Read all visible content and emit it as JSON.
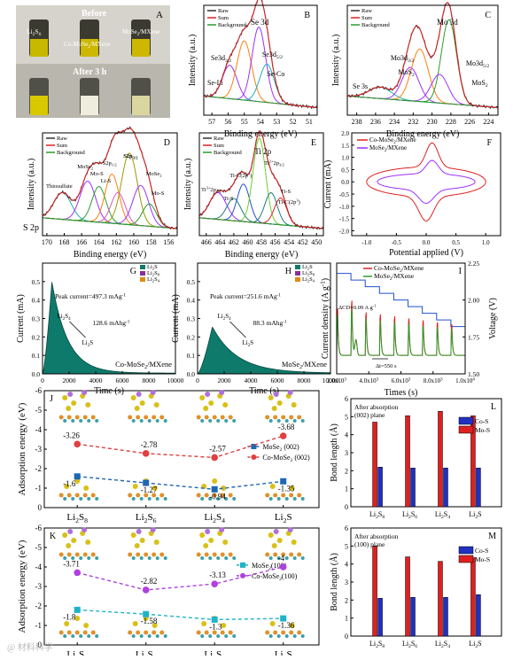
{
  "panel_letters": [
    "A",
    "B",
    "C",
    "D",
    "E",
    "F",
    "G",
    "H",
    "I",
    "J",
    "K",
    "L",
    "M"
  ],
  "photo": {
    "before": "Before",
    "after": "After 3 h",
    "vial_labels": [
      "Li2S6",
      "Co-MoSe2/MXene",
      "MoSe2/MXene"
    ]
  },
  "colors": {
    "raw": "#333333",
    "sum": "#e02020",
    "background": "#2a9d2a",
    "violet": "#9b30ff",
    "orange": "#ff7f0e",
    "cyan": "#1fb3b3",
    "teal": "#1f7a7a",
    "navy": "#1f3f9e",
    "olive": "#9a9a00",
    "pink": "#e055c0",
    "lime": "#6ccf2f",
    "blue": "#2050d0"
  },
  "chart_data": [
    {
      "panel": "B",
      "type": "line",
      "title": "Se 3d",
      "xlabel": "Binding energy (eV)",
      "ylabel": "Intensity (a.u.)",
      "xlim": [
        57.5,
        50.5
      ],
      "xticks": [
        57,
        56,
        55,
        54,
        53,
        52,
        51
      ],
      "legend": [
        "Raw",
        "Sum",
        "Background"
      ],
      "peaks": [
        {
          "label": "Se-Li",
          "center": 55.9,
          "height": 0.35,
          "width": 0.45,
          "color": "#9b30ff"
        },
        {
          "label": "Se3d3/2",
          "center": 55.0,
          "height": 0.62,
          "width": 0.45,
          "color": "#ff7f0e"
        },
        {
          "label": "Se3d5/2",
          "center": 54.1,
          "height": 0.78,
          "width": 0.42,
          "color": "#9b30ff"
        },
        {
          "label": "Se-Co",
          "center": 53.6,
          "height": 0.4,
          "width": 0.45,
          "color": "#1fb3b3"
        }
      ]
    },
    {
      "panel": "C",
      "type": "line",
      "title": "Mo 3d",
      "xlabel": "Binding energy (eV)",
      "ylabel": "Intensity (a.u.)",
      "xlim": [
        239,
        223
      ],
      "xticks": [
        238,
        236,
        234,
        232,
        230,
        228,
        226,
        224
      ],
      "legend": [
        "Raw",
        "Sum",
        "Background"
      ],
      "peaks": [
        {
          "label": "Se 3s",
          "center": 235.5,
          "height": 0.12,
          "width": 1.2,
          "color": "#1fb3b3"
        },
        {
          "label": "MoS2",
          "center": 232.3,
          "height": 0.35,
          "width": 0.9,
          "color": "#9b30ff"
        },
        {
          "label": "Mo3d3/2",
          "center": 231.3,
          "height": 0.55,
          "width": 0.9,
          "color": "#ff7f0e"
        },
        {
          "label": "Mo3d5/2",
          "center": 228.2,
          "height": 0.88,
          "width": 0.8,
          "color": "#2a9d2a"
        },
        {
          "label": "MoS2",
          "center": 229.2,
          "height": 0.3,
          "width": 0.9,
          "color": "#9b30ff"
        }
      ]
    },
    {
      "panel": "D",
      "type": "line",
      "title": "S 2p",
      "xlabel": "Binding energy (eV)",
      "ylabel": "Intensity (a.u.)",
      "xlim": [
        170.5,
        155
      ],
      "xticks": [
        170,
        168,
        166,
        164,
        162,
        160,
        158,
        156
      ],
      "legend": [
        "Raw",
        "Sum",
        "Background"
      ],
      "peaks": [
        {
          "label": "Thiosulfate",
          "center": 168.2,
          "height": 0.3,
          "width": 1.0,
          "color": "#1fb3b3"
        },
        {
          "label": "MoSe2",
          "center": 165.3,
          "height": 0.45,
          "width": 0.9,
          "color": "#9b30ff"
        },
        {
          "label": "Mo-S",
          "center": 164.0,
          "height": 0.4,
          "width": 0.8,
          "color": "#2a9d2a"
        },
        {
          "label": "S2p3/2",
          "center": 162.5,
          "height": 0.55,
          "width": 0.8,
          "color": "#ff7f0e"
        },
        {
          "label": "Li-S",
          "center": 161.8,
          "height": 0.35,
          "width": 0.8,
          "color": "#e055c0"
        },
        {
          "label": "S2p1/2",
          "center": 160.5,
          "height": 0.8,
          "width": 0.9,
          "color": "#9a9a00"
        },
        {
          "label": "MoSe2",
          "center": 159.2,
          "height": 0.45,
          "width": 0.9,
          "color": "#9b30ff"
        },
        {
          "label": "Mo-S",
          "center": 158.2,
          "height": 0.25,
          "width": 0.8,
          "color": "#2a9d2a"
        }
      ]
    },
    {
      "panel": "E",
      "type": "line",
      "title": "Ti 2p",
      "xlabel": "Binding energy (eV)",
      "ylabel": "Intensity (a.u.)",
      "xlim": [
        467,
        449
      ],
      "xticks": [
        466,
        464,
        462,
        460,
        458,
        456,
        454,
        452,
        450
      ],
      "legend": [
        "Raw",
        "Sum",
        "Background"
      ],
      "peaks": [
        {
          "label": "Ti3+2p1/2",
          "center": 464.3,
          "height": 0.3,
          "width": 1.2,
          "color": "#9b30ff"
        },
        {
          "label": "Ti-S",
          "center": 462.0,
          "height": 0.25,
          "width": 1.0,
          "color": "#1f7a7a"
        },
        {
          "label": "Ti-C(2p1)",
          "center": 460.6,
          "height": 0.42,
          "width": 0.9,
          "color": "#2050d0"
        },
        {
          "label": "Ti2+2p3/2",
          "center": 458.3,
          "height": 0.95,
          "width": 0.9,
          "color": "#6ccf2f"
        },
        {
          "label": "Ti-S",
          "center": 456.6,
          "height": 0.35,
          "width": 0.9,
          "color": "#1f7a7a"
        },
        {
          "label": "Ti-C(2p3)",
          "center": 455.2,
          "height": 0.3,
          "width": 0.9,
          "color": "#e02020"
        }
      ]
    },
    {
      "panel": "F",
      "type": "line",
      "xlabel": "Potential applied (V)",
      "ylabel": "Current (mA)",
      "xlim": [
        -1.25,
        1.25
      ],
      "ylim": [
        -2.2,
        2.0
      ],
      "xticks": [
        -1.0,
        -0.5,
        0.0,
        0.5,
        1.0
      ],
      "yticks": [
        -2.0,
        -1.5,
        -1.0,
        -0.5,
        0.0,
        0.5,
        1.0,
        1.5,
        2.0
      ],
      "series": [
        {
          "name": "Co-MoSe2/MXene",
          "color": "#e02020",
          "scale": 1.0
        },
        {
          "name": "MoSe2/MXene",
          "color": "#9b30ff",
          "scale": 0.55
        }
      ]
    },
    {
      "panel": "G",
      "type": "area",
      "xlabel": "Time (s)",
      "ylabel": "Current (mA)",
      "xlim": [
        0,
        10000
      ],
      "ylim": [
        0,
        0.6
      ],
      "xticks": [
        0,
        2000,
        4000,
        6000,
        8000,
        10000
      ],
      "legend": [
        "Li2S",
        "Li2S8",
        "Li2S4"
      ],
      "peak_time": 700,
      "peak_current": 0.497,
      "annotations": [
        "Peak current=497.3 mAg-1",
        "Li2S4",
        "128.6 mAhg-1",
        "Li2S"
      ],
      "sample": "Co-MoSe2/MXene"
    },
    {
      "panel": "H",
      "type": "area",
      "xlabel": "Time (s)",
      "ylabel": "Current (mA)",
      "xlim": [
        0,
        10000
      ],
      "ylim": [
        0,
        0.6
      ],
      "xticks": [
        0,
        2000,
        4000,
        6000,
        8000,
        10000
      ],
      "legend": [
        "Li2S",
        "Li2S8",
        "Li2S4"
      ],
      "peak_time": 1100,
      "peak_current": 0.252,
      "annotations": [
        "Peak current=251.6 mAg-1",
        "Li2S4",
        "88.3 mAhg-1",
        "Li2S"
      ],
      "sample": "MoSe2/MXene"
    },
    {
      "panel": "I",
      "type": "line",
      "xlabel": "Times (s)",
      "ylabel": "Current density (A g-1)",
      "y2label": "Voltage (V)",
      "xlim": [
        18000,
        100000
      ],
      "ylim": [
        -0.1,
        2.0
      ],
      "y2lim": [
        1.5,
        2.25
      ],
      "xticks": [
        "2.0x10^3",
        "4.0x10^3",
        "6.0x10^3",
        "8.0x10^3",
        "1.0x10^4"
      ],
      "y2ticks": [
        1.5,
        1.75,
        2.0,
        2.25
      ],
      "series": [
        {
          "name": "Co-MoSe2/MXene",
          "color": "#e02020"
        },
        {
          "name": "MoSe2/MXene",
          "color": "#2a9d2a"
        }
      ],
      "annotations": [
        "ΔCD=0.09 A g-1",
        "Δt=550 s"
      ]
    },
    {
      "panel": "J",
      "type": "scatter",
      "ylabel": "Adsorption energy (eV)",
      "categories": [
        "Li2S8",
        "Li2S6",
        "Li2S4",
        "Li2S"
      ],
      "ylim": [
        -6,
        0
      ],
      "series": [
        {
          "name": "MoSe2 (002)",
          "values": [
            -1.6,
            -1.27,
            -0.94,
            -1.35
          ],
          "color": "#1f66b3",
          "marker": "square"
        },
        {
          "name": "Co-MoSe2 (002)",
          "values": [
            -3.26,
            -2.78,
            -2.57,
            -3.68
          ],
          "color": "#e04040",
          "marker": "circle"
        }
      ]
    },
    {
      "panel": "K",
      "type": "scatter",
      "ylabel": "Adsorption energy (eV)",
      "categories": [
        "Li2S8",
        "Li2S6",
        "Li2S4",
        "Li2S"
      ],
      "ylim": [
        -6,
        0
      ],
      "series": [
        {
          "name": "MoSe2(100)",
          "values": [
            -1.8,
            -1.58,
            -1.3,
            -1.36
          ],
          "color": "#20b3c8",
          "marker": "square"
        },
        {
          "name": "Co-MoSe2(100)",
          "values": [
            -3.71,
            -2.82,
            -3.13,
            -4.0
          ],
          "color": "#b040e0",
          "marker": "circle"
        }
      ]
    },
    {
      "panel": "L",
      "type": "bar",
      "title": "After absorption (002) plane",
      "ylabel": "Bond length (Å)",
      "categories": [
        "Li2S8",
        "Li2S6",
        "Li2S4",
        "Li2S"
      ],
      "ylim": [
        0,
        6
      ],
      "series": [
        {
          "name": "Co-S",
          "values": [
            2.2,
            2.15,
            2.15,
            2.15
          ],
          "color": "#2030c0"
        },
        {
          "name": "Mo-S",
          "values": [
            4.7,
            5.05,
            5.3,
            5.05
          ],
          "color": "#e02020"
        }
      ]
    },
    {
      "panel": "M",
      "type": "bar",
      "title": "After absorption (100) plane",
      "ylabel": "Bond length (Å)",
      "categories": [
        "Li2S8",
        "Li2S6",
        "Li2S4",
        "Li2S"
      ],
      "ylim": [
        0,
        6
      ],
      "series": [
        {
          "name": "Co-S",
          "values": [
            2.1,
            2.15,
            2.15,
            2.3
          ],
          "color": "#2030c0"
        },
        {
          "name": "Mo-S",
          "values": [
            5.0,
            4.4,
            4.15,
            4.35
          ],
          "color": "#e02020"
        }
      ]
    }
  ]
}
